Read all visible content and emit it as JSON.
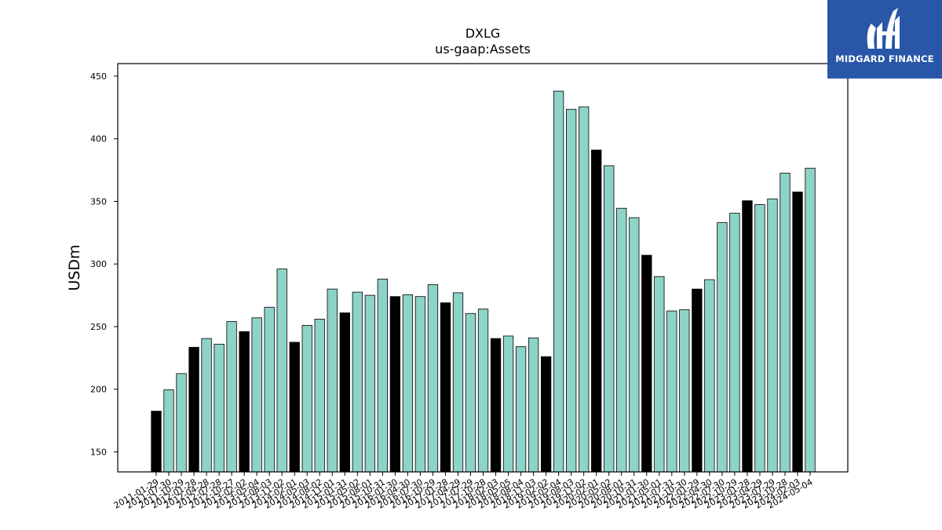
{
  "chart_data": {
    "type": "bar",
    "title": "DXLG",
    "subtitle": "us-gaap:Assets",
    "ylabel": "USDm",
    "ylim": [
      134,
      460
    ],
    "yticks": [
      150,
      200,
      250,
      300,
      350,
      400,
      450
    ],
    "categories": [
      "2011-01-29",
      "2011-07-30",
      "2011-10-29",
      "2012-01-28",
      "2012-04-28",
      "2012-07-28",
      "2012-10-27",
      "2013-02-02",
      "2013-05-04",
      "2013-08-03",
      "2013-11-02",
      "2014-02-01",
      "2014-05-03",
      "2014-08-02",
      "2014-11-01",
      "2015-01-31",
      "2015-05-02",
      "2015-08-01",
      "2015-10-31",
      "2016-01-30",
      "2016-04-30",
      "2016-07-30",
      "2016-10-29",
      "2017-01-28",
      "2017-04-29",
      "2017-07-29",
      "2017-10-28",
      "2018-02-03",
      "2018-05-05",
      "2018-08-04",
      "2018-11-03",
      "2019-02-02",
      "2019-05-04",
      "2019-08-03",
      "2019-11-02",
      "2020-02-01",
      "2020-05-02",
      "2020-08-01",
      "2020-10-31",
      "2021-01-30",
      "2021-05-01",
      "2021-07-31",
      "2021-10-30",
      "2022-01-29",
      "2022-04-30",
      "2022-07-30",
      "2022-10-29",
      "2023-01-28",
      "2023-04-29",
      "2023-07-29",
      "2023-10-28",
      "2024-02-03",
      "2024-05-04"
    ],
    "values": [
      182.5,
      199.5,
      212.5,
      233.5,
      240.5,
      236,
      254,
      246,
      257,
      265.5,
      296,
      237.5,
      251,
      256,
      280,
      261,
      277.5,
      275,
      288,
      274,
      275.5,
      274,
      283.5,
      269,
      277,
      260.5,
      264,
      240.5,
      242.5,
      234,
      241,
      226,
      438,
      423.5,
      425.5,
      391,
      378.5,
      344.5,
      337,
      307,
      290,
      262.5,
      263.5,
      280,
      287.5,
      333,
      340.5,
      350.5,
      347.5,
      352,
      372.5,
      357.5,
      376.5
    ],
    "highlighted": [
      true,
      false,
      false,
      true,
      false,
      false,
      false,
      true,
      false,
      false,
      false,
      true,
      false,
      false,
      false,
      true,
      false,
      false,
      false,
      true,
      false,
      false,
      false,
      true,
      false,
      false,
      false,
      true,
      false,
      false,
      false,
      true,
      false,
      false,
      false,
      true,
      false,
      false,
      false,
      true,
      false,
      false,
      false,
      true,
      false,
      false,
      false,
      true,
      false,
      false,
      false,
      true,
      false
    ],
    "colors": {
      "bar": "#8dd3c7",
      "highlight": "#000000",
      "edge": "#000000"
    }
  },
  "branding": {
    "logo_text": "MIDGARD FINANCE",
    "logo_color": "#2a56a8"
  }
}
